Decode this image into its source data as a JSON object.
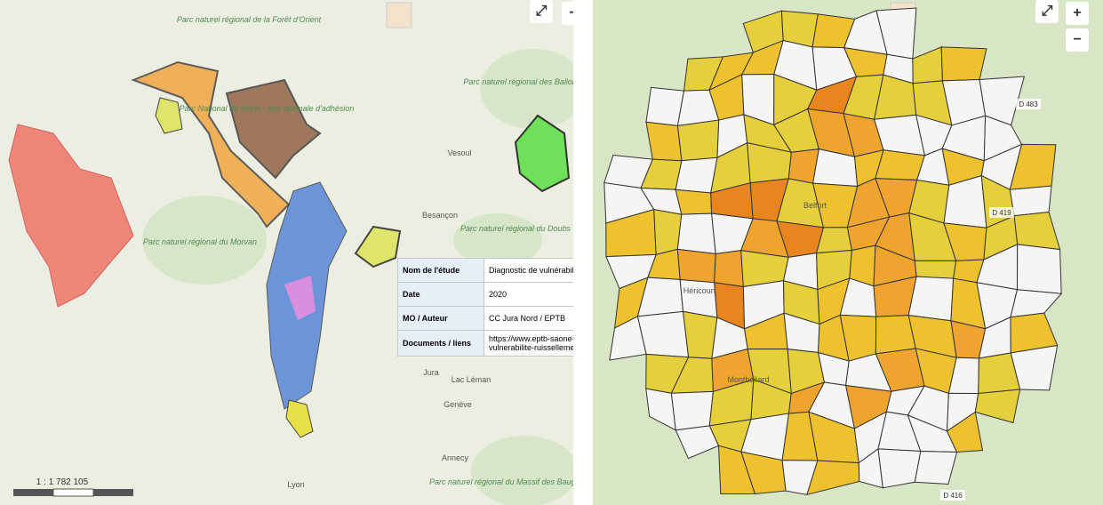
{
  "left_map": {
    "place_labels": [
      "Parc naturel régional de la Forêt d'Orient",
      "Parc naturel régional des Ballons des Vosges",
      "Parc National de forêts - aire optimale d'adhésion",
      "Parc naturel régional du Morvan",
      "Vesoul",
      "Besançon",
      "Parc naturel régional du Doubs",
      "Jura",
      "Lac Léman",
      "Genève",
      "Annecy",
      "Lyon",
      "Parc naturel régional du Massif des Bauges"
    ],
    "scale_text": "1 : 1 782 105",
    "popup": {
      "rows": [
        [
          "Nom de l'étude",
          "Diagnostic de vulnérabilité"
        ],
        [
          "Date",
          "2020"
        ],
        [
          "MO / Auteur",
          "CC Jura Nord / EPTB"
        ],
        [
          "Documents / liens",
          "https://www.eptb-saone-doubs.fr/ vulnerabilite-ruissellement"
        ]
      ]
    },
    "expand": "⤢",
    "zoom_out": "−"
  },
  "right_map": {
    "place_labels": [
      "Belfort",
      "Héricourt",
      "Montbéliard"
    ],
    "road_labels": [
      "D 483",
      "D 419",
      "D 416"
    ],
    "expand": "⤢",
    "zoom_in": "+",
    "zoom_out": "−"
  }
}
